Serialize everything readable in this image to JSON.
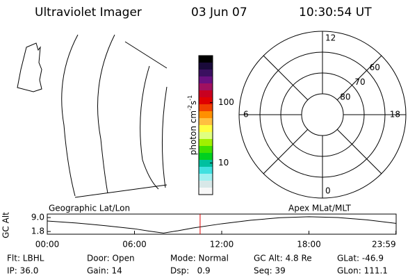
{
  "header": {
    "instrument": "Ultraviolet Imager",
    "date": "03 Jun 07",
    "time": "10:30:54 UT"
  },
  "colorbar": {
    "label": [
      "photon cm",
      "-2",
      "s",
      "-1"
    ],
    "colors": [
      "#000000",
      "#1a0a3a",
      "#3a1060",
      "#6a1080",
      "#a01060",
      "#c80020",
      "#e00000",
      "#f04000",
      "#ff9000",
      "#ffc040",
      "#ffff40",
      "#e0ff80",
      "#a0f000",
      "#40e000",
      "#00d020",
      "#00c0a0",
      "#40e0e0",
      "#a0f0f0",
      "#d8e8e8",
      "#f8f8f8"
    ],
    "lim": [
      3,
      600
    ],
    "ticks": [
      10,
      100
    ],
    "log": true
  },
  "polar": {
    "mlt_ticks": [
      12,
      6,
      0,
      18
    ],
    "lat_ticks": [
      80,
      70,
      60
    ],
    "lat_lim": [
      90,
      50
    ]
  },
  "maps": {
    "geo_label": "Geographic Lat/Lon",
    "mag_label": "Apex MLat/MLT"
  },
  "altitude": {
    "ylabel": "GC Alt",
    "ylim": [
      0.4,
      10.8
    ],
    "yticks": [
      {
        "value": 9,
        "label": "9.0"
      },
      {
        "value": 1.8,
        "label": "1.8"
      }
    ],
    "xlim": [
      0,
      24
    ],
    "xticks": [
      {
        "value": 0,
        "label": "00:00"
      },
      {
        "value": 6,
        "label": "06:00"
      },
      {
        "value": 12,
        "label": "12:00"
      },
      {
        "value": 18,
        "label": "18:00"
      },
      {
        "value": 23.983,
        "label": "23:59"
      }
    ],
    "x": [
      0,
      2,
      4,
      6,
      7,
      8,
      9,
      10,
      12,
      14,
      16,
      18,
      20,
      22,
      23.983
    ],
    "values": [
      7.2,
      6.2,
      4.8,
      3.2,
      2.0,
      1.0,
      2.2,
      3.6,
      5.8,
      7.6,
      8.9,
      9.4,
      9.0,
      7.8,
      6.0
    ],
    "color": "#000000",
    "current_hour": 10.515,
    "current_color": "#e00000"
  },
  "footer": {
    "rows": [
      [
        "Flt: LBHL",
        "Door: Open",
        "Mode: Normal",
        "GC Alt: 4.8 Re",
        "GLat: -46.9"
      ],
      [
        "IP: 36.0",
        "Gain: 14",
        "Dsp:   0.9",
        "Seq: 39",
        "GLon: 111.1"
      ]
    ]
  }
}
